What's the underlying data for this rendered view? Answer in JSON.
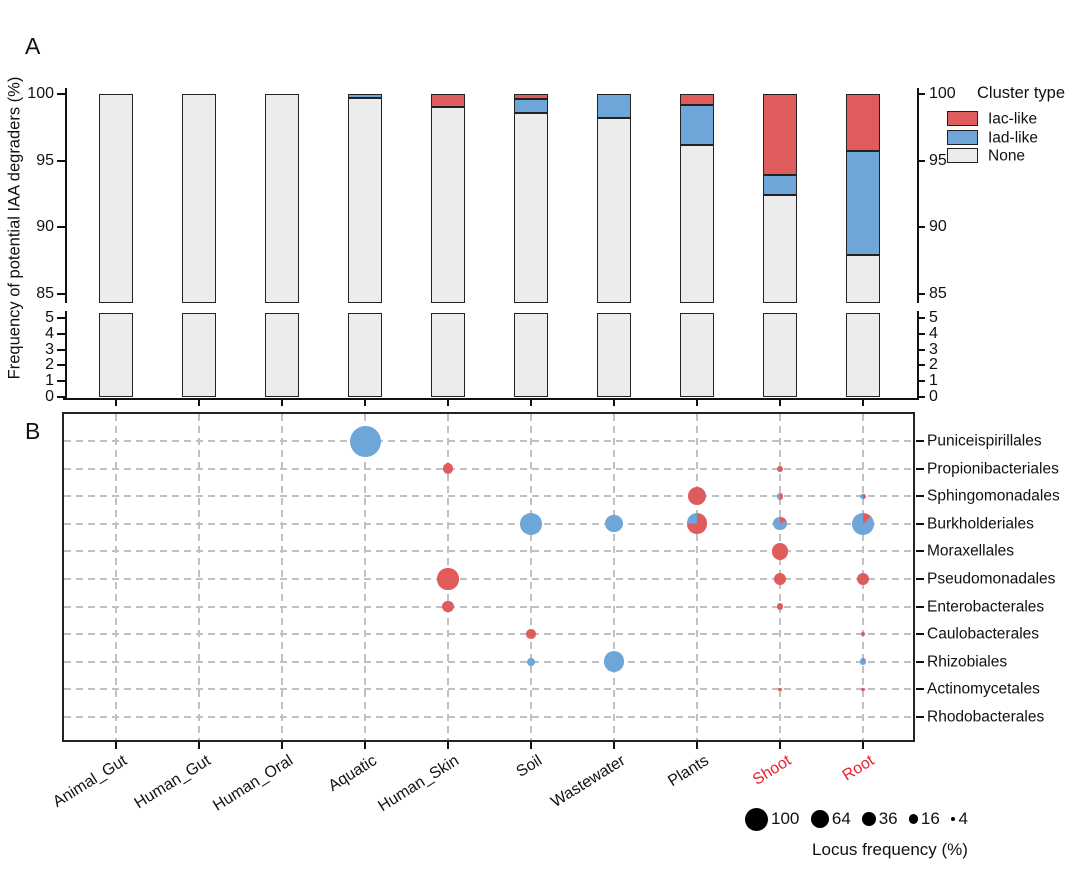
{
  "panel_a": {
    "label": "A"
  },
  "panel_b": {
    "label": "B"
  },
  "colors": {
    "iac": "#DF5C5C",
    "iad": "#6EA6D9",
    "none": "#ECECEC",
    "ink": "#111111",
    "grid": "#C0C0C0",
    "highlight_red": "#E8212B",
    "legend_dot": "#000000"
  },
  "chart_data": [
    {
      "id": "A",
      "type": "bar",
      "stacked": true,
      "ylabel": "Frequency of potential IAA degraders (%)",
      "legend_title": "Cluster type",
      "categories": [
        "Animal_Gut",
        "Human_Gut",
        "Human_Oral",
        "Aquatic",
        "Human_Skin",
        "Soil",
        "Wastewater",
        "Plants",
        "Shoot",
        "Root"
      ],
      "highlighted_categories": [
        "Shoot",
        "Root"
      ],
      "series": [
        {
          "name": "Iac-like",
          "color_key": "iac",
          "values": [
            0,
            0,
            0,
            0,
            1.0,
            0.4,
            0,
            0.8,
            6.1,
            4.3
          ]
        },
        {
          "name": "Iad-like",
          "color_key": "iad",
          "values": [
            0,
            0,
            0,
            0.3,
            0,
            1.0,
            1.8,
            3.0,
            1.5,
            7.8
          ]
        },
        {
          "name": "None",
          "color_key": "none",
          "values": [
            100,
            100,
            100,
            99.7,
            99.0,
            98.6,
            98.2,
            96.2,
            92.4,
            87.9
          ]
        }
      ],
      "y_axis_break": true,
      "y_ticks_upper": [
        100,
        95,
        90,
        85
      ],
      "y_ticks_lower": [
        5,
        4,
        3,
        2,
        1,
        0
      ],
      "ylim_upper": [
        85,
        100
      ],
      "ylim_lower": [
        0,
        5
      ]
    },
    {
      "id": "B",
      "type": "bubble",
      "x_categories": [
        "Animal_Gut",
        "Human_Gut",
        "Human_Oral",
        "Aquatic",
        "Human_Skin",
        "Soil",
        "Wastewater",
        "Plants",
        "Shoot",
        "Root"
      ],
      "highlighted_x": [
        "Shoot",
        "Root"
      ],
      "y_categories": [
        "Puniceispirillales",
        "Propionibacteriales",
        "Sphingomonadales",
        "Burkholderiales",
        "Moraxellales",
        "Pseudomonadales",
        "Enterobacterales",
        "Caulobacterales",
        "Rhizobiales",
        "Actinomycetales",
        "Rhodobacterales"
      ],
      "points": [
        {
          "x": "Aquatic",
          "y": "Puniceispirillales",
          "value": 100,
          "composition": [
            {
              "cluster": "Iad-like",
              "pct": 100
            }
          ]
        },
        {
          "x": "Human_Skin",
          "y": "Propionibacteriales",
          "value": 12,
          "composition": [
            {
              "cluster": "Iac-like",
              "pct": 100
            }
          ]
        },
        {
          "x": "Human_Skin",
          "y": "Pseudomonadales",
          "value": 46,
          "composition": [
            {
              "cluster": "Iac-like",
              "pct": 100
            }
          ]
        },
        {
          "x": "Human_Skin",
          "y": "Enterobacterales",
          "value": 13,
          "composition": [
            {
              "cluster": "Iac-like",
              "pct": 100
            }
          ]
        },
        {
          "x": "Soil",
          "y": "Burkholderiales",
          "value": 49,
          "composition": [
            {
              "cluster": "Iad-like",
              "pct": 100
            }
          ]
        },
        {
          "x": "Soil",
          "y": "Caulobacterales",
          "value": 10,
          "composition": [
            {
              "cluster": "Iac-like",
              "pct": 100
            }
          ]
        },
        {
          "x": "Soil",
          "y": "Rhizobiales",
          "value": 7,
          "composition": [
            {
              "cluster": "Iad-like",
              "pct": 100
            }
          ]
        },
        {
          "x": "Wastewater",
          "y": "Burkholderiales",
          "value": 31,
          "composition": [
            {
              "cluster": "Iad-like",
              "pct": 100
            }
          ]
        },
        {
          "x": "Wastewater",
          "y": "Rhizobiales",
          "value": 45,
          "composition": [
            {
              "cluster": "Iad-like",
              "pct": 100
            }
          ]
        },
        {
          "x": "Plants",
          "y": "Sphingomonadales",
          "value": 35,
          "composition": [
            {
              "cluster": "Iac-like",
              "pct": 100
            }
          ]
        },
        {
          "x": "Plants",
          "y": "Burkholderiales",
          "value": 45,
          "composition": [
            {
              "cluster": "Iac-like",
              "pct": 75
            },
            {
              "cluster": "Iad-like",
              "pct": 25
            }
          ]
        },
        {
          "x": "Shoot",
          "y": "Propionibacteriales",
          "value": 4,
          "composition": [
            {
              "cluster": "Iac-like",
              "pct": 100
            }
          ]
        },
        {
          "x": "Shoot",
          "y": "Sphingomonadales",
          "value": 5,
          "composition": [
            {
              "cluster": "Iac-like",
              "pct": 50
            },
            {
              "cluster": "Iad-like",
              "pct": 50
            }
          ]
        },
        {
          "x": "Shoot",
          "y": "Burkholderiales",
          "value": 18,
          "composition": [
            {
              "cluster": "Iac-like",
              "pct": 18
            },
            {
              "cluster": "Iad-like",
              "pct": 82
            }
          ]
        },
        {
          "x": "Shoot",
          "y": "Moraxellales",
          "value": 29,
          "composition": [
            {
              "cluster": "Iac-like",
              "pct": 100
            }
          ]
        },
        {
          "x": "Shoot",
          "y": "Pseudomonadales",
          "value": 15,
          "composition": [
            {
              "cluster": "Iac-like",
              "pct": 100
            }
          ]
        },
        {
          "x": "Shoot",
          "y": "Enterobacterales",
          "value": 5,
          "composition": [
            {
              "cluster": "Iac-like",
              "pct": 100
            }
          ]
        },
        {
          "x": "Shoot",
          "y": "Actinomycetales",
          "value": 1,
          "composition": [
            {
              "cluster": "Iac-like",
              "pct": 100
            }
          ]
        },
        {
          "x": "Root",
          "y": "Sphingomonadales",
          "value": 3,
          "composition": [
            {
              "cluster": "Iac-like",
              "pct": 50
            },
            {
              "cluster": "Iad-like",
              "pct": 50
            }
          ]
        },
        {
          "x": "Root",
          "y": "Burkholderiales",
          "value": 49,
          "composition": [
            {
              "cluster": "Iac-like",
              "pct": 13
            },
            {
              "cluster": "Iad-like",
              "pct": 87
            }
          ]
        },
        {
          "x": "Root",
          "y": "Pseudomonadales",
          "value": 17,
          "composition": [
            {
              "cluster": "Iac-like",
              "pct": 100
            }
          ]
        },
        {
          "x": "Root",
          "y": "Caulobacterales",
          "value": 2,
          "composition": [
            {
              "cluster": "Iac-like",
              "pct": 100
            }
          ]
        },
        {
          "x": "Root",
          "y": "Rhizobiales",
          "value": 5,
          "composition": [
            {
              "cluster": "Iac-like",
              "pct": 12
            },
            {
              "cluster": "Iad-like",
              "pct": 88
            }
          ]
        },
        {
          "x": "Root",
          "y": "Actinomycetales",
          "value": 1,
          "composition": [
            {
              "cluster": "Iac-like",
              "pct": 100
            }
          ]
        }
      ],
      "size_legend": {
        "values": [
          100,
          64,
          36,
          16,
          4
        ],
        "title": "Locus frequency (%)"
      }
    }
  ]
}
